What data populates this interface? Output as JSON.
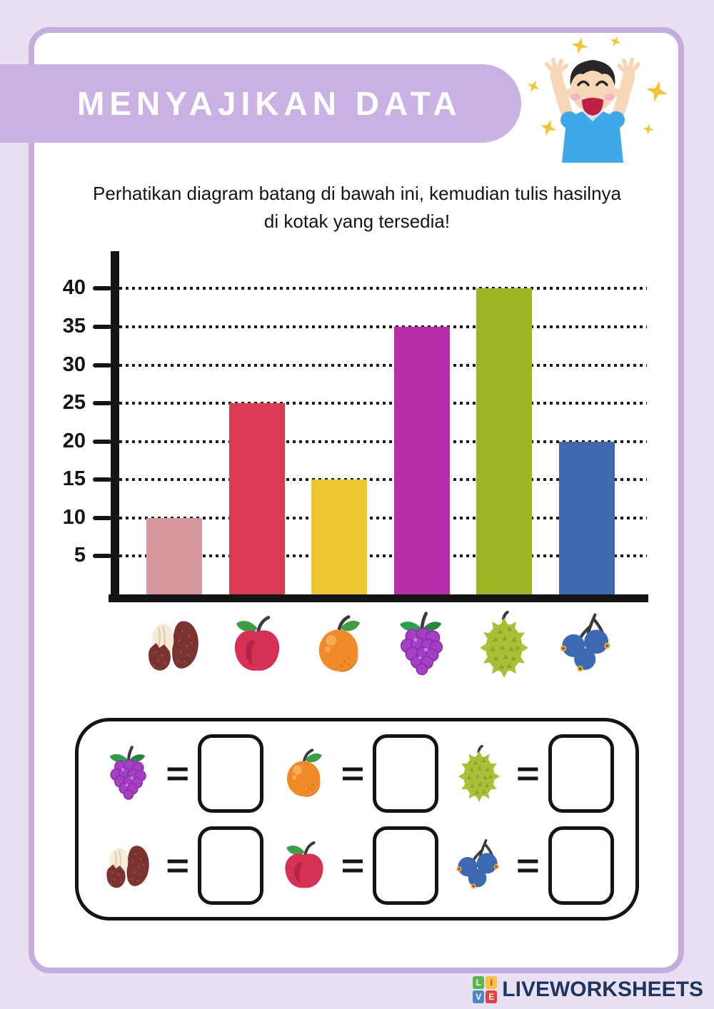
{
  "header": {
    "title": "MENYAJIKAN DATA"
  },
  "instruction": "Perhatikan diagram batang di bawah ini, kemudian tulis hasilnya di kotak yang tersedia!",
  "chart_data": {
    "type": "bar",
    "categories": [
      "salak",
      "apel",
      "jeruk",
      "anggur",
      "durian",
      "bluberi"
    ],
    "values": [
      10,
      25,
      15,
      35,
      40,
      20
    ],
    "colors": [
      "#d6979c",
      "#dc3a55",
      "#eec832",
      "#b72cab",
      "#a0b523",
      "#3f69ae"
    ],
    "yticks": [
      5,
      10,
      15,
      20,
      25,
      30,
      35,
      40
    ],
    "ylim": [
      0,
      45
    ],
    "grid": "dotted-horizontal",
    "title": "",
    "xlabel": "",
    "ylabel": "",
    "x_labels_style": "fruit-icons"
  },
  "icons": {
    "salak": "salak-icon",
    "apel": "apple-icon",
    "jeruk": "orange-icon",
    "anggur": "grapes-icon",
    "durian": "durian-icon",
    "bluberi": "blueberry-icon"
  },
  "answers": {
    "equals": "=",
    "rows": [
      [
        "anggur",
        "jeruk",
        "durian"
      ],
      [
        "salak",
        "apel",
        "bluberi"
      ]
    ]
  },
  "footer": {
    "logo_letters": [
      "L",
      "I",
      "V",
      "E"
    ],
    "brand": "LIVEWORKSHEETS"
  },
  "palette": {
    "outer_bg": "#e9e0f3",
    "sheet_border": "#c2addc",
    "band_bg": "#c9b2e3",
    "band_text": "#ffffff",
    "ink": "#141414",
    "navy": "#1d3660",
    "sparkle": "#f1c535"
  }
}
